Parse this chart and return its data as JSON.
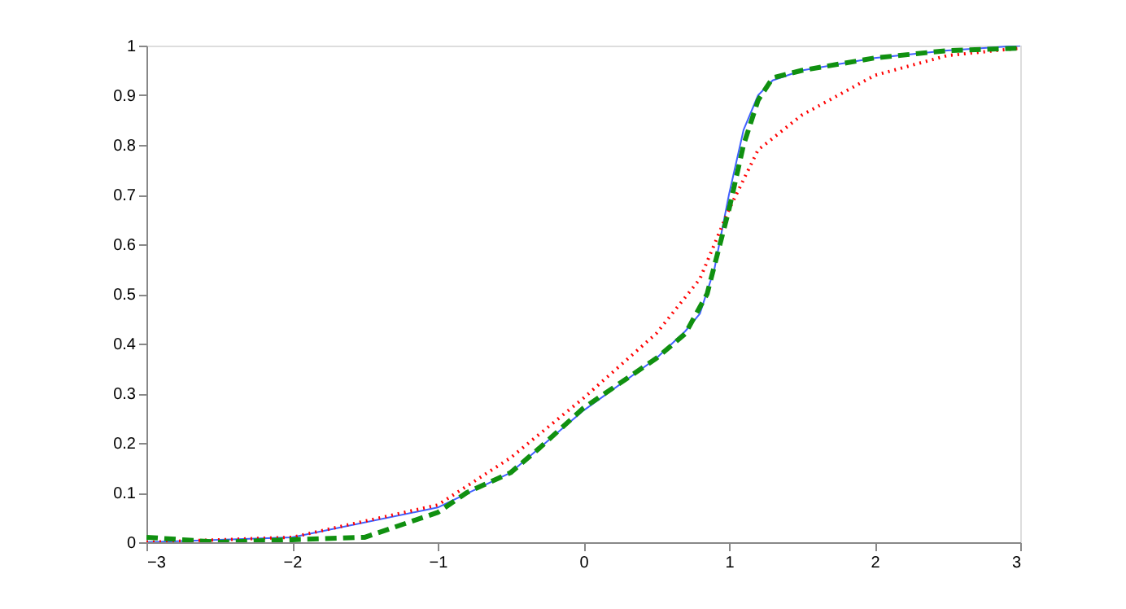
{
  "chart_data": {
    "type": "line",
    "xlim": [
      -3,
      3
    ],
    "ylim": [
      0,
      1
    ],
    "xticks": [
      -3,
      -2,
      -1,
      0,
      1,
      2,
      3
    ],
    "yticks": [
      0,
      0.1,
      0.2,
      0.3,
      0.4,
      0.5,
      0.6,
      0.7,
      0.8,
      0.9,
      1
    ],
    "grid": false,
    "series": [
      {
        "color": "#4060ff",
        "line_style": "solid",
        "x": [
          -3,
          -2,
          -1,
          -0.5,
          0,
          0.5,
          0.7,
          0.8,
          0.9,
          1.0,
          1.1,
          1.2,
          1.3,
          1.5,
          2,
          2.5,
          3
        ],
        "values": [
          0,
          0.01,
          0.07,
          0.14,
          0.265,
          0.37,
          0.425,
          0.46,
          0.55,
          0.7,
          0.83,
          0.9,
          0.93,
          0.95,
          0.975,
          0.99,
          1
        ]
      },
      {
        "color": "#ff0000",
        "line_style": "dotted",
        "x": [
          -3,
          -2,
          -1,
          -0.5,
          0,
          0.5,
          0.8,
          1.0,
          1.2,
          1.5,
          2,
          2.5,
          3
        ],
        "values": [
          0,
          0.01,
          0.075,
          0.17,
          0.29,
          0.42,
          0.53,
          0.67,
          0.79,
          0.86,
          0.94,
          0.98,
          0.995
        ]
      },
      {
        "color": "#109010",
        "line_style": "dashed",
        "x": [
          -3,
          -2.5,
          -2,
          -1.5,
          -1.2,
          -1,
          -0.8,
          -0.5,
          -0.3,
          0,
          0.3,
          0.5,
          0.7,
          0.85,
          1.0,
          1.1,
          1.2,
          1.3,
          1.5,
          2,
          2.5,
          3
        ],
        "values": [
          0.01,
          0,
          0.005,
          0.01,
          0.04,
          0.06,
          0.1,
          0.14,
          0.19,
          0.27,
          0.33,
          0.37,
          0.42,
          0.5,
          0.67,
          0.8,
          0.89,
          0.935,
          0.95,
          0.975,
          0.99,
          0.995
        ]
      }
    ]
  }
}
